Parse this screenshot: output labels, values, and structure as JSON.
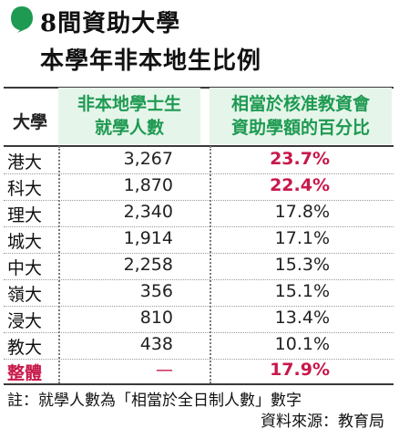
{
  "title": {
    "line1": "8間資助大學",
    "line2": "本學年非本地生比例"
  },
  "colors": {
    "accent_green": "#1e9a52",
    "header_bg": "#e6f5ea",
    "highlight_red": "#c8184a"
  },
  "table": {
    "headers": {
      "university": "大學",
      "count_line1": "非本地學士生",
      "count_line2": "就學人數",
      "pct_line1": "相當於核准教資會",
      "pct_line2": "資助學額的百分比"
    },
    "rows": [
      {
        "university": "港大",
        "count": "3,267",
        "pct": "23.7%"
      },
      {
        "university": "科大",
        "count": "1,870",
        "pct": "22.4%"
      },
      {
        "university": "理大",
        "count": "2,340",
        "pct": "17.8%"
      },
      {
        "university": "城大",
        "count": "1,914",
        "pct": "17.1%"
      },
      {
        "university": "中大",
        "count": "2,258",
        "pct": "15.3%"
      },
      {
        "university": "嶺大",
        "count": "356",
        "pct": "15.1%"
      },
      {
        "university": "浸大",
        "count": "810",
        "pct": "13.4%"
      },
      {
        "university": "教大",
        "count": "438",
        "pct": "10.1%"
      },
      {
        "university": "整體",
        "count": "—",
        "pct": "17.9%"
      }
    ]
  },
  "footer": {
    "note": "註：就學人數為「相當於全日制人數」數字",
    "source": "資料來源：教育局"
  }
}
